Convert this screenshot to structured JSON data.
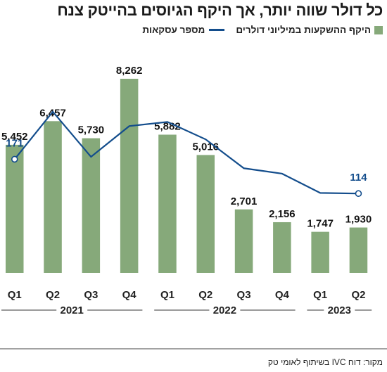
{
  "title": "כל דולר שווה יותר, אך היקף הגיוסים בהייטק צנח",
  "legend": {
    "bars_label": "היקף ההשקעות במיליוני דולרים",
    "line_label": "מספר עסקאות"
  },
  "source": "מקור: דוח IVC בשיתוף לאומי טק",
  "colors": {
    "bar": "#86a97a",
    "line": "#134d8c",
    "axis": "#333333"
  },
  "chart_data": {
    "type": "bar",
    "categories": [
      "Q1",
      "Q2",
      "Q3",
      "Q4",
      "Q1",
      "Q2",
      "Q3",
      "Q4",
      "Q1",
      "Q2"
    ],
    "years": [
      {
        "label": "2021",
        "span": [
          0,
          3
        ]
      },
      {
        "label": "2022",
        "span": [
          4,
          7
        ]
      },
      {
        "label": "2023",
        "span": [
          8,
          9
        ]
      }
    ],
    "series": [
      {
        "name": "היקף ההשקעות במיליוני דולרים",
        "type": "bar",
        "values": [
          5452,
          6457,
          5730,
          8262,
          5882,
          5016,
          2701,
          2156,
          1747,
          1930
        ],
        "labels": [
          "5,452",
          "6,457",
          "5,730",
          "8,262",
          "5,882",
          "5,016",
          "2,701",
          "2,156",
          "1,747",
          "1,930"
        ]
      },
      {
        "name": "מספר עסקאות",
        "type": "line",
        "values": [
          171,
          250,
          175,
          226,
          233,
          204,
          156,
          147,
          115,
          114
        ],
        "labeled": {
          "0": "171",
          "9": "114"
        }
      }
    ],
    "ylim_bars": [
      0,
      8600
    ],
    "ylim_line": [
      0,
      300
    ],
    "grid": false
  }
}
